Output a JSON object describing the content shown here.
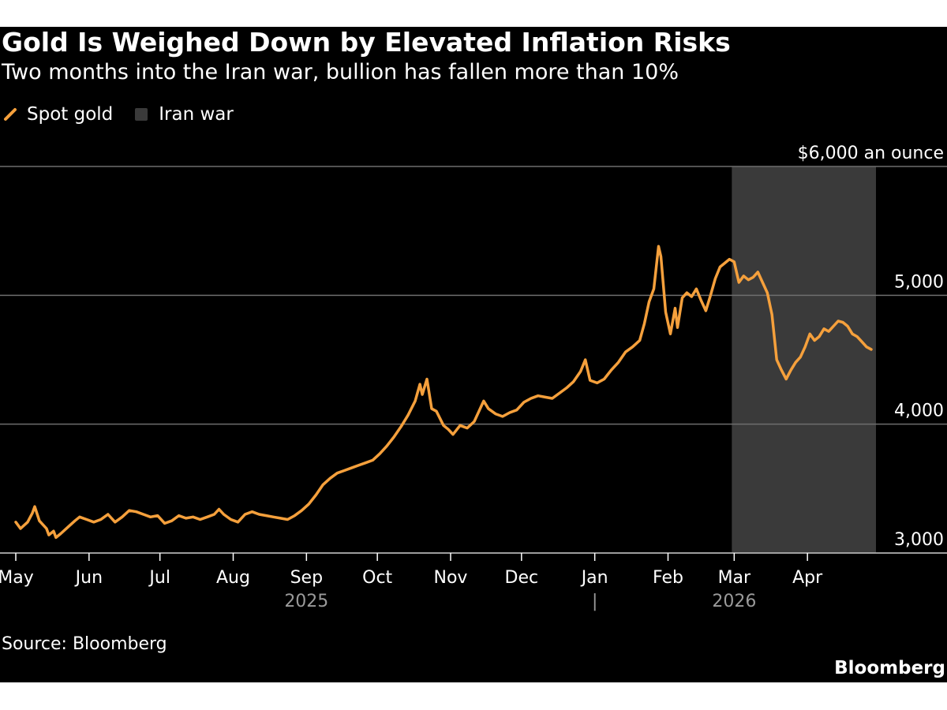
{
  "title": "Gold Is Weighed Down by Elevated Inflation Risks",
  "subtitle": "Two months into the Iran war, bullion has fallen more than 10%",
  "legend": {
    "series_label": "Spot gold",
    "shade_label": "Iran war"
  },
  "source": "Source: Bloomberg",
  "brand": "Bloomberg",
  "colors": {
    "background": "#000000",
    "line": "#f5a03c",
    "shade": "#3a3a3a",
    "grid": "#6e6e6e",
    "text": "#ffffff",
    "muted": "#9a9a9a"
  },
  "chart_data": {
    "type": "line",
    "title": "Gold Is Weighed Down by Elevated Inflation Risks",
    "subtitle": "Two months into the Iran war, bullion has fallen more than 10%",
    "ylabel": "$ an ounce",
    "ylim": [
      3000,
      6000
    ],
    "xlim": [
      "2025-05-01",
      "2026-05-01"
    ],
    "y_ticks": [
      {
        "value": 6000,
        "label": "$6,000 an ounce"
      },
      {
        "value": 5000,
        "label": "5,000"
      },
      {
        "value": 4000,
        "label": "4,000"
      },
      {
        "value": 3000,
        "label": "3,000"
      }
    ],
    "x_ticks": [
      {
        "date": "2025-05-01",
        "label": "May"
      },
      {
        "date": "2025-06-01",
        "label": "Jun"
      },
      {
        "date": "2025-07-01",
        "label": "Jul"
      },
      {
        "date": "2025-08-01",
        "label": "Aug"
      },
      {
        "date": "2025-09-01",
        "label": "Sep"
      },
      {
        "date": "2025-10-01",
        "label": "Oct"
      },
      {
        "date": "2025-11-01",
        "label": "Nov"
      },
      {
        "date": "2025-12-01",
        "label": "Dec"
      },
      {
        "date": "2026-01-01",
        "label": "Jan"
      },
      {
        "date": "2026-02-01",
        "label": "Feb"
      },
      {
        "date": "2026-03-01",
        "label": "Mar"
      },
      {
        "date": "2026-04-01",
        "label": "Apr"
      }
    ],
    "year_labels": [
      {
        "date": "2025-09-01",
        "label": "2025"
      },
      {
        "date": "2026-03-01",
        "label": "2026"
      }
    ],
    "year_divider": {
      "date": "2026-01-01",
      "label": "|"
    },
    "shaded_region": {
      "name": "Iran war",
      "start": "2026-02-28",
      "end": "2026-04-30"
    },
    "series": [
      {
        "name": "Spot gold",
        "points": [
          [
            "2025-05-01",
            3240
          ],
          [
            "2025-05-03",
            3190
          ],
          [
            "2025-05-06",
            3240
          ],
          [
            "2025-05-08",
            3310
          ],
          [
            "2025-05-09",
            3360
          ],
          [
            "2025-05-11",
            3250
          ],
          [
            "2025-05-14",
            3190
          ],
          [
            "2025-05-15",
            3140
          ],
          [
            "2025-05-17",
            3170
          ],
          [
            "2025-05-18",
            3120
          ],
          [
            "2025-05-20",
            3150
          ],
          [
            "2025-05-23",
            3200
          ],
          [
            "2025-05-26",
            3250
          ],
          [
            "2025-05-28",
            3280
          ],
          [
            "2025-05-31",
            3260
          ],
          [
            "2025-06-03",
            3240
          ],
          [
            "2025-06-06",
            3260
          ],
          [
            "2025-06-09",
            3300
          ],
          [
            "2025-06-12",
            3240
          ],
          [
            "2025-06-15",
            3280
          ],
          [
            "2025-06-18",
            3330
          ],
          [
            "2025-06-21",
            3320
          ],
          [
            "2025-06-24",
            3300
          ],
          [
            "2025-06-27",
            3280
          ],
          [
            "2025-06-30",
            3290
          ],
          [
            "2025-07-03",
            3230
          ],
          [
            "2025-07-06",
            3250
          ],
          [
            "2025-07-09",
            3290
          ],
          [
            "2025-07-12",
            3270
          ],
          [
            "2025-07-15",
            3280
          ],
          [
            "2025-07-18",
            3260
          ],
          [
            "2025-07-21",
            3280
          ],
          [
            "2025-07-24",
            3300
          ],
          [
            "2025-07-26",
            3340
          ],
          [
            "2025-07-28",
            3300
          ],
          [
            "2025-07-31",
            3260
          ],
          [
            "2025-08-03",
            3240
          ],
          [
            "2025-08-06",
            3300
          ],
          [
            "2025-08-09",
            3320
          ],
          [
            "2025-08-12",
            3300
          ],
          [
            "2025-08-15",
            3290
          ],
          [
            "2025-08-18",
            3280
          ],
          [
            "2025-08-21",
            3270
          ],
          [
            "2025-08-24",
            3260
          ],
          [
            "2025-08-27",
            3290
          ],
          [
            "2025-08-30",
            3330
          ],
          [
            "2025-09-02",
            3380
          ],
          [
            "2025-09-05",
            3450
          ],
          [
            "2025-09-08",
            3530
          ],
          [
            "2025-09-11",
            3580
          ],
          [
            "2025-09-14",
            3620
          ],
          [
            "2025-09-17",
            3640
          ],
          [
            "2025-09-20",
            3660
          ],
          [
            "2025-09-23",
            3680
          ],
          [
            "2025-09-26",
            3700
          ],
          [
            "2025-09-29",
            3720
          ],
          [
            "2025-10-02",
            3770
          ],
          [
            "2025-10-05",
            3830
          ],
          [
            "2025-10-08",
            3900
          ],
          [
            "2025-10-11",
            3980
          ],
          [
            "2025-10-14",
            4070
          ],
          [
            "2025-10-17",
            4180
          ],
          [
            "2025-10-19",
            4310
          ],
          [
            "2025-10-20",
            4230
          ],
          [
            "2025-10-22",
            4350
          ],
          [
            "2025-10-24",
            4120
          ],
          [
            "2025-10-26",
            4100
          ],
          [
            "2025-10-29",
            3990
          ],
          [
            "2025-10-31",
            3960
          ],
          [
            "2025-11-02",
            3920
          ],
          [
            "2025-11-05",
            3990
          ],
          [
            "2025-11-08",
            3970
          ],
          [
            "2025-11-11",
            4020
          ],
          [
            "2025-11-13",
            4100
          ],
          [
            "2025-11-15",
            4180
          ],
          [
            "2025-11-17",
            4120
          ],
          [
            "2025-11-20",
            4080
          ],
          [
            "2025-11-23",
            4060
          ],
          [
            "2025-11-26",
            4090
          ],
          [
            "2025-11-29",
            4110
          ],
          [
            "2025-12-02",
            4170
          ],
          [
            "2025-12-05",
            4200
          ],
          [
            "2025-12-08",
            4220
          ],
          [
            "2025-12-11",
            4210
          ],
          [
            "2025-12-14",
            4200
          ],
          [
            "2025-12-17",
            4240
          ],
          [
            "2025-12-20",
            4280
          ],
          [
            "2025-12-23",
            4330
          ],
          [
            "2025-12-26",
            4410
          ],
          [
            "2025-12-28",
            4500
          ],
          [
            "2025-12-30",
            4340
          ],
          [
            "2026-01-02",
            4320
          ],
          [
            "2026-01-05",
            4350
          ],
          [
            "2026-01-08",
            4420
          ],
          [
            "2026-01-11",
            4480
          ],
          [
            "2026-01-14",
            4560
          ],
          [
            "2026-01-17",
            4600
          ],
          [
            "2026-01-20",
            4650
          ],
          [
            "2026-01-22",
            4780
          ],
          [
            "2026-01-24",
            4950
          ],
          [
            "2026-01-26",
            5050
          ],
          [
            "2026-01-28",
            5380
          ],
          [
            "2026-01-29",
            5300
          ],
          [
            "2026-01-31",
            4870
          ],
          [
            "2026-02-02",
            4700
          ],
          [
            "2026-02-04",
            4900
          ],
          [
            "2026-02-05",
            4750
          ],
          [
            "2026-02-07",
            4980
          ],
          [
            "2026-02-09",
            5020
          ],
          [
            "2026-02-11",
            4990
          ],
          [
            "2026-02-13",
            5050
          ],
          [
            "2026-02-15",
            4960
          ],
          [
            "2026-02-17",
            4880
          ],
          [
            "2026-02-19",
            5000
          ],
          [
            "2026-02-21",
            5130
          ],
          [
            "2026-02-23",
            5220
          ],
          [
            "2026-02-25",
            5250
          ],
          [
            "2026-02-27",
            5280
          ],
          [
            "2026-03-01",
            5260
          ],
          [
            "2026-03-03",
            5100
          ],
          [
            "2026-03-05",
            5150
          ],
          [
            "2026-03-07",
            5120
          ],
          [
            "2026-03-09",
            5140
          ],
          [
            "2026-03-11",
            5180
          ],
          [
            "2026-03-13",
            5100
          ],
          [
            "2026-03-15",
            5020
          ],
          [
            "2026-03-17",
            4850
          ],
          [
            "2026-03-19",
            4500
          ],
          [
            "2026-03-21",
            4420
          ],
          [
            "2026-03-23",
            4350
          ],
          [
            "2026-03-25",
            4420
          ],
          [
            "2026-03-27",
            4480
          ],
          [
            "2026-03-29",
            4520
          ],
          [
            "2026-03-31",
            4600
          ],
          [
            "2026-04-02",
            4700
          ],
          [
            "2026-04-04",
            4650
          ],
          [
            "2026-04-06",
            4680
          ],
          [
            "2026-04-08",
            4740
          ],
          [
            "2026-04-10",
            4720
          ],
          [
            "2026-04-12",
            4760
          ],
          [
            "2026-04-14",
            4800
          ],
          [
            "2026-04-16",
            4790
          ],
          [
            "2026-04-18",
            4760
          ],
          [
            "2026-04-20",
            4700
          ],
          [
            "2026-04-22",
            4680
          ],
          [
            "2026-04-24",
            4640
          ],
          [
            "2026-04-26",
            4600
          ],
          [
            "2026-04-28",
            4580
          ]
        ]
      }
    ]
  }
}
